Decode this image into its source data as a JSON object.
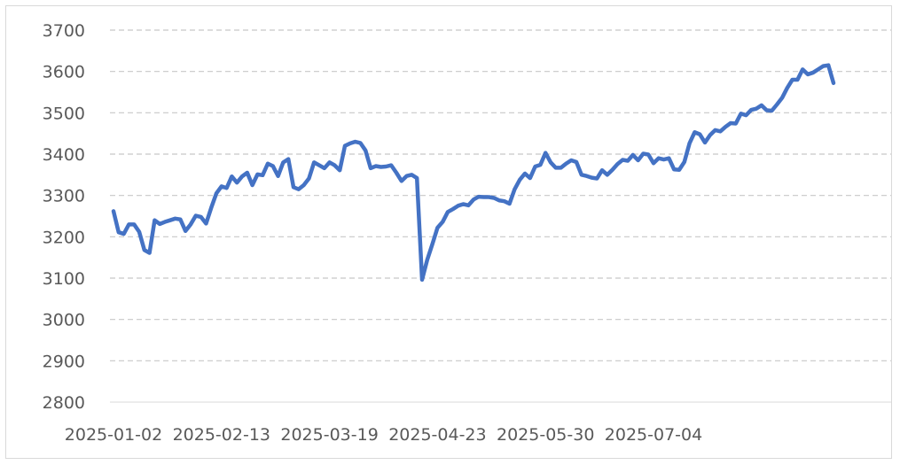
{
  "chart_data": {
    "type": "line",
    "title": "",
    "xlabel": "",
    "ylabel": "",
    "ylim": [
      2800,
      3700
    ],
    "y_ticks": [
      "2800",
      "2900",
      "3000",
      "3100",
      "3200",
      "3300",
      "3400",
      "3500",
      "3600",
      "3700"
    ],
    "x_tick_labels": [
      {
        "label": "2025-01-02",
        "index": 0
      },
      {
        "label": "2025-02-13",
        "index": 21
      },
      {
        "label": "2025-03-19",
        "index": 42
      },
      {
        "label": "2025-04-23",
        "index": 63
      },
      {
        "label": "2025-05-30",
        "index": 84
      },
      {
        "label": "2025-07-04",
        "index": 105
      }
    ],
    "grid": true,
    "legend": "none",
    "line_color": "#4472c4",
    "series": [
      {
        "values": [
          3262,
          3211,
          3207,
          3230,
          3230,
          3212,
          3168,
          3161,
          3240,
          3231,
          3236,
          3240,
          3244,
          3242,
          3214,
          3230,
          3251,
          3248,
          3232,
          3270,
          3305,
          3322,
          3318,
          3346,
          3331,
          3346,
          3355,
          3325,
          3351,
          3349,
          3377,
          3371,
          3347,
          3380,
          3388,
          3320,
          3315,
          3325,
          3341,
          3380,
          3373,
          3366,
          3380,
          3373,
          3361,
          3420,
          3426,
          3430,
          3427,
          3409,
          3366,
          3371,
          3369,
          3370,
          3373,
          3355,
          3335,
          3347,
          3350,
          3342,
          3096,
          3144,
          3182,
          3222,
          3236,
          3260,
          3267,
          3275,
          3279,
          3276,
          3290,
          3297,
          3296,
          3296,
          3294,
          3288,
          3286,
          3280,
          3315,
          3338,
          3353,
          3342,
          3370,
          3374,
          3403,
          3380,
          3367,
          3367,
          3377,
          3385,
          3381,
          3350,
          3347,
          3343,
          3341,
          3361,
          3350,
          3362,
          3376,
          3386,
          3384,
          3398,
          3385,
          3401,
          3399,
          3378,
          3390,
          3387,
          3390,
          3363,
          3362,
          3381,
          3426,
          3453,
          3448,
          3428,
          3446,
          3458,
          3455,
          3466,
          3475,
          3474,
          3498,
          3494,
          3507,
          3510,
          3518,
          3506,
          3505,
          3520,
          3536,
          3560,
          3580,
          3580,
          3605,
          3593,
          3597,
          3605,
          3613,
          3615,
          3572
        ]
      }
    ]
  }
}
